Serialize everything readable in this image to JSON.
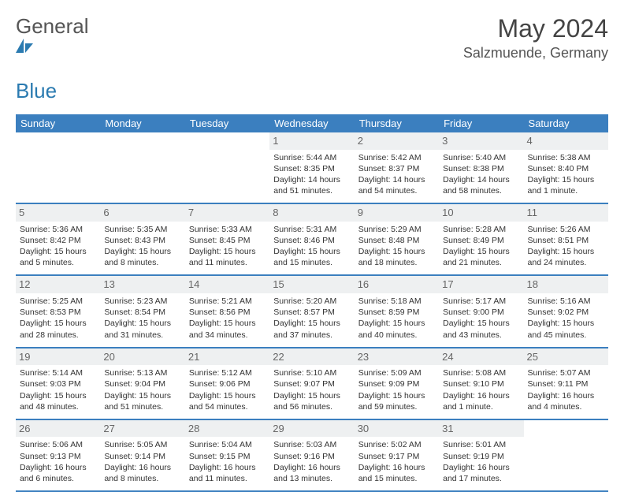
{
  "brand": {
    "name_a": "General",
    "name_b": "Blue"
  },
  "title": "May 2024",
  "location": "Salzmuende, Germany",
  "colors": {
    "header_bg": "#3b7fbf",
    "header_text": "#ffffff",
    "daynum_bg": "#eef0f1",
    "border": "#3b7fbf",
    "brand_blue": "#2a7ab0",
    "text": "#333333",
    "logo_fill": "#2a7ab0"
  },
  "typography": {
    "base_font": "Arial",
    "title_size_pt": 24,
    "body_size_pt": 8
  },
  "weekdays": [
    "Sunday",
    "Monday",
    "Tuesday",
    "Wednesday",
    "Thursday",
    "Friday",
    "Saturday"
  ],
  "weeks": [
    [
      {
        "n": "",
        "empty": true
      },
      {
        "n": "",
        "empty": true
      },
      {
        "n": "",
        "empty": true
      },
      {
        "n": "1",
        "sr": "Sunrise: 5:44 AM",
        "ss": "Sunset: 8:35 PM",
        "dl": "Daylight: 14 hours and 51 minutes."
      },
      {
        "n": "2",
        "sr": "Sunrise: 5:42 AM",
        "ss": "Sunset: 8:37 PM",
        "dl": "Daylight: 14 hours and 54 minutes."
      },
      {
        "n": "3",
        "sr": "Sunrise: 5:40 AM",
        "ss": "Sunset: 8:38 PM",
        "dl": "Daylight: 14 hours and 58 minutes."
      },
      {
        "n": "4",
        "sr": "Sunrise: 5:38 AM",
        "ss": "Sunset: 8:40 PM",
        "dl": "Daylight: 15 hours and 1 minute."
      }
    ],
    [
      {
        "n": "5",
        "sr": "Sunrise: 5:36 AM",
        "ss": "Sunset: 8:42 PM",
        "dl": "Daylight: 15 hours and 5 minutes."
      },
      {
        "n": "6",
        "sr": "Sunrise: 5:35 AM",
        "ss": "Sunset: 8:43 PM",
        "dl": "Daylight: 15 hours and 8 minutes."
      },
      {
        "n": "7",
        "sr": "Sunrise: 5:33 AM",
        "ss": "Sunset: 8:45 PM",
        "dl": "Daylight: 15 hours and 11 minutes."
      },
      {
        "n": "8",
        "sr": "Sunrise: 5:31 AM",
        "ss": "Sunset: 8:46 PM",
        "dl": "Daylight: 15 hours and 15 minutes."
      },
      {
        "n": "9",
        "sr": "Sunrise: 5:29 AM",
        "ss": "Sunset: 8:48 PM",
        "dl": "Daylight: 15 hours and 18 minutes."
      },
      {
        "n": "10",
        "sr": "Sunrise: 5:28 AM",
        "ss": "Sunset: 8:49 PM",
        "dl": "Daylight: 15 hours and 21 minutes."
      },
      {
        "n": "11",
        "sr": "Sunrise: 5:26 AM",
        "ss": "Sunset: 8:51 PM",
        "dl": "Daylight: 15 hours and 24 minutes."
      }
    ],
    [
      {
        "n": "12",
        "sr": "Sunrise: 5:25 AM",
        "ss": "Sunset: 8:53 PM",
        "dl": "Daylight: 15 hours and 28 minutes."
      },
      {
        "n": "13",
        "sr": "Sunrise: 5:23 AM",
        "ss": "Sunset: 8:54 PM",
        "dl": "Daylight: 15 hours and 31 minutes."
      },
      {
        "n": "14",
        "sr": "Sunrise: 5:21 AM",
        "ss": "Sunset: 8:56 PM",
        "dl": "Daylight: 15 hours and 34 minutes."
      },
      {
        "n": "15",
        "sr": "Sunrise: 5:20 AM",
        "ss": "Sunset: 8:57 PM",
        "dl": "Daylight: 15 hours and 37 minutes."
      },
      {
        "n": "16",
        "sr": "Sunrise: 5:18 AM",
        "ss": "Sunset: 8:59 PM",
        "dl": "Daylight: 15 hours and 40 minutes."
      },
      {
        "n": "17",
        "sr": "Sunrise: 5:17 AM",
        "ss": "Sunset: 9:00 PM",
        "dl": "Daylight: 15 hours and 43 minutes."
      },
      {
        "n": "18",
        "sr": "Sunrise: 5:16 AM",
        "ss": "Sunset: 9:02 PM",
        "dl": "Daylight: 15 hours and 45 minutes."
      }
    ],
    [
      {
        "n": "19",
        "sr": "Sunrise: 5:14 AM",
        "ss": "Sunset: 9:03 PM",
        "dl": "Daylight: 15 hours and 48 minutes."
      },
      {
        "n": "20",
        "sr": "Sunrise: 5:13 AM",
        "ss": "Sunset: 9:04 PM",
        "dl": "Daylight: 15 hours and 51 minutes."
      },
      {
        "n": "21",
        "sr": "Sunrise: 5:12 AM",
        "ss": "Sunset: 9:06 PM",
        "dl": "Daylight: 15 hours and 54 minutes."
      },
      {
        "n": "22",
        "sr": "Sunrise: 5:10 AM",
        "ss": "Sunset: 9:07 PM",
        "dl": "Daylight: 15 hours and 56 minutes."
      },
      {
        "n": "23",
        "sr": "Sunrise: 5:09 AM",
        "ss": "Sunset: 9:09 PM",
        "dl": "Daylight: 15 hours and 59 minutes."
      },
      {
        "n": "24",
        "sr": "Sunrise: 5:08 AM",
        "ss": "Sunset: 9:10 PM",
        "dl": "Daylight: 16 hours and 1 minute."
      },
      {
        "n": "25",
        "sr": "Sunrise: 5:07 AM",
        "ss": "Sunset: 9:11 PM",
        "dl": "Daylight: 16 hours and 4 minutes."
      }
    ],
    [
      {
        "n": "26",
        "sr": "Sunrise: 5:06 AM",
        "ss": "Sunset: 9:13 PM",
        "dl": "Daylight: 16 hours and 6 minutes."
      },
      {
        "n": "27",
        "sr": "Sunrise: 5:05 AM",
        "ss": "Sunset: 9:14 PM",
        "dl": "Daylight: 16 hours and 8 minutes."
      },
      {
        "n": "28",
        "sr": "Sunrise: 5:04 AM",
        "ss": "Sunset: 9:15 PM",
        "dl": "Daylight: 16 hours and 11 minutes."
      },
      {
        "n": "29",
        "sr": "Sunrise: 5:03 AM",
        "ss": "Sunset: 9:16 PM",
        "dl": "Daylight: 16 hours and 13 minutes."
      },
      {
        "n": "30",
        "sr": "Sunrise: 5:02 AM",
        "ss": "Sunset: 9:17 PM",
        "dl": "Daylight: 16 hours and 15 minutes."
      },
      {
        "n": "31",
        "sr": "Sunrise: 5:01 AM",
        "ss": "Sunset: 9:19 PM",
        "dl": "Daylight: 16 hours and 17 minutes."
      },
      {
        "n": "",
        "empty": true
      }
    ]
  ]
}
